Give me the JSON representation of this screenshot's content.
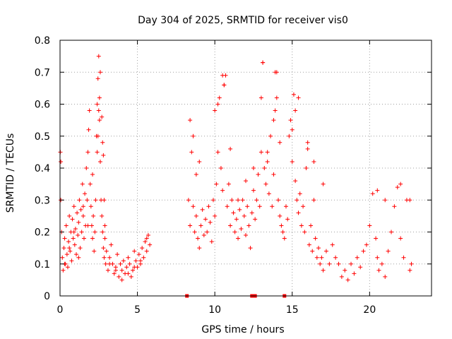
{
  "chart_data": {
    "type": "scatter",
    "title": "Day 304 of 2025, SRMTID for receiver vis0",
    "xlabel": "GPS time / hours",
    "ylabel": "SRMTID / TECUs",
    "xlim": [
      0,
      24
    ],
    "ylim": [
      0,
      0.8
    ],
    "xticks": [
      0,
      5,
      10,
      15,
      20
    ],
    "xtick_labels": [
      "0",
      "5",
      "10",
      "15",
      "20"
    ],
    "yticks": [
      0,
      0.1,
      0.2,
      0.3,
      0.4,
      0.5,
      0.6,
      0.7,
      0.8
    ],
    "ytick_labels": [
      "0",
      "0.1",
      "0.2",
      "0.3",
      "0.4",
      "0.5",
      "0.6",
      "0.7",
      "0.8"
    ],
    "grid": true,
    "marker": "plus",
    "series_color": "#ff0000",
    "series": [
      {
        "name": "SRMTID",
        "x": [
          0.02,
          0.05,
          0.1,
          0.15,
          0.2,
          0.25,
          0.3,
          0.35,
          0.4,
          0.45,
          0.5,
          0.55,
          0.6,
          0.65,
          0.7,
          0.75,
          0.8,
          0.85,
          0.9,
          0.95,
          1.0,
          1.05,
          1.1,
          1.15,
          1.2,
          1.25,
          1.3,
          1.35,
          1.4,
          1.45,
          1.5,
          1.55,
          1.6,
          1.65,
          1.7,
          1.75,
          1.8,
          1.85,
          1.9,
          1.95,
          2.0,
          2.05,
          2.1,
          2.15,
          2.2,
          2.25,
          2.3,
          2.35,
          2.4,
          2.45,
          2.5,
          2.55,
          2.6,
          2.65,
          2.7,
          2.75,
          2.8,
          2.85,
          2.9,
          2.95,
          3.0,
          3.1,
          3.2,
          3.3,
          3.4,
          3.5,
          3.6,
          3.7,
          3.8,
          3.9,
          4.0,
          4.1,
          4.2,
          4.3,
          4.4,
          4.5,
          4.6,
          4.7,
          4.8,
          4.9,
          5.0,
          5.1,
          5.2,
          5.3,
          5.4,
          5.5,
          5.6,
          5.7,
          5.8,
          0.05,
          0.3,
          0.6,
          0.9,
          1.2,
          1.5,
          1.8,
          2.1,
          2.4,
          2.45,
          2.5,
          2.55,
          2.6,
          2.7,
          2.75,
          2.8,
          2.85,
          2.9,
          3.2,
          3.6,
          4.0,
          4.4,
          4.8,
          5.2,
          5.6,
          8.3,
          8.4,
          8.5,
          8.6,
          8.7,
          8.8,
          8.9,
          9.0,
          9.1,
          9.2,
          9.3,
          9.4,
          9.5,
          9.6,
          9.7,
          9.8,
          9.9,
          10.0,
          10.1,
          10.2,
          10.3,
          10.4,
          10.5,
          10.6,
          10.7,
          10.8,
          10.9,
          11.0,
          11.1,
          11.2,
          11.3,
          11.4,
          11.5,
          11.6,
          11.7,
          11.8,
          11.9,
          12.0,
          12.1,
          12.2,
          12.3,
          12.4,
          12.5,
          12.6,
          12.7,
          12.8,
          12.9,
          13.0,
          13.1,
          13.2,
          13.3,
          13.4,
          13.5,
          13.6,
          13.7,
          13.8,
          13.9,
          14.0,
          14.1,
          14.2,
          14.3,
          14.4,
          14.5,
          14.6,
          14.7,
          14.8,
          14.9,
          15.0,
          15.1,
          15.2,
          15.3,
          15.4,
          15.5,
          15.6,
          15.7,
          15.8,
          15.9,
          16.0,
          16.1,
          16.2,
          16.3,
          16.4,
          16.5,
          16.6,
          16.7,
          16.8,
          16.9,
          17.0,
          17.2,
          17.4,
          17.6,
          17.8,
          18.0,
          18.2,
          18.4,
          18.6,
          18.8,
          19.0,
          19.2,
          19.4,
          19.6,
          19.8,
          20.0,
          20.2,
          20.4,
          20.5,
          20.6,
          20.8,
          21.0,
          21.2,
          21.4,
          21.6,
          21.8,
          22.0,
          22.2,
          22.4,
          22.6,
          22.7,
          8.4,
          8.6,
          8.8,
          9.0,
          10.0,
          10.2,
          10.5,
          10.6,
          11.0,
          11.5,
          12.0,
          12.5,
          13.0,
          13.1,
          13.4,
          13.8,
          13.9,
          14.0,
          14.2,
          15.0,
          15.2,
          15.4,
          16.0,
          16.4,
          17.0,
          20.5,
          21.0,
          22.0,
          22.6
        ],
        "y": [
          0.45,
          0.3,
          0.2,
          0.12,
          0.08,
          0.15,
          0.18,
          0.1,
          0.22,
          0.13,
          0.09,
          0.17,
          0.25,
          0.14,
          0.2,
          0.11,
          0.24,
          0.18,
          0.28,
          0.16,
          0.21,
          0.13,
          0.26,
          0.19,
          0.23,
          0.3,
          0.15,
          0.27,
          0.2,
          0.35,
          0.25,
          0.18,
          0.32,
          0.22,
          0.4,
          0.3,
          0.45,
          0.52,
          0.58,
          0.35,
          0.28,
          0.22,
          0.18,
          0.25,
          0.14,
          0.2,
          0.3,
          0.5,
          0.6,
          0.68,
          0.75,
          0.55,
          0.42,
          0.3,
          0.25,
          0.2,
          0.15,
          0.12,
          0.18,
          0.1,
          0.14,
          0.08,
          0.12,
          0.16,
          0.1,
          0.07,
          0.09,
          0.13,
          0.06,
          0.1,
          0.08,
          0.11,
          0.07,
          0.09,
          0.12,
          0.1,
          0.06,
          0.08,
          0.14,
          0.11,
          0.09,
          0.13,
          0.1,
          0.15,
          0.12,
          0.17,
          0.14,
          0.19,
          0.16,
          0.42,
          0.1,
          0.15,
          0.2,
          0.12,
          0.28,
          0.22,
          0.38,
          0.45,
          0.5,
          0.58,
          0.62,
          0.7,
          0.56,
          0.48,
          0.44,
          0.3,
          0.22,
          0.1,
          0.08,
          0.05,
          0.07,
          0.09,
          0.11,
          0.18,
          0.3,
          0.22,
          0.45,
          0.28,
          0.2,
          0.25,
          0.18,
          0.15,
          0.22,
          0.27,
          0.19,
          0.24,
          0.2,
          0.28,
          0.23,
          0.17,
          0.3,
          0.25,
          0.35,
          0.45,
          0.62,
          0.4,
          0.33,
          0.66,
          0.69,
          0.28,
          0.35,
          0.22,
          0.3,
          0.26,
          0.2,
          0.24,
          0.18,
          0.27,
          0.21,
          0.3,
          0.25,
          0.19,
          0.28,
          0.22,
          0.15,
          0.26,
          0.33,
          0.24,
          0.3,
          0.38,
          0.28,
          0.45,
          0.73,
          0.4,
          0.35,
          0.42,
          0.32,
          0.5,
          0.28,
          0.38,
          0.58,
          0.7,
          0.3,
          0.25,
          0.22,
          0.2,
          0.18,
          0.28,
          0.24,
          0.5,
          0.55,
          0.42,
          0.63,
          0.36,
          0.3,
          0.26,
          0.32,
          0.22,
          0.28,
          0.2,
          0.4,
          0.46,
          0.16,
          0.22,
          0.14,
          0.3,
          0.18,
          0.12,
          0.15,
          0.1,
          0.12,
          0.08,
          0.14,
          0.1,
          0.16,
          0.12,
          0.1,
          0.06,
          0.08,
          0.05,
          0.1,
          0.07,
          0.12,
          0.09,
          0.14,
          0.16,
          0.22,
          0.32,
          0.18,
          0.12,
          0.08,
          0.1,
          0.06,
          0.14,
          0.2,
          0.28,
          0.34,
          0.18,
          0.12,
          0.3,
          0.08,
          0.1,
          0.55,
          0.5,
          0.38,
          0.42,
          0.58,
          0.6,
          0.69,
          0.66,
          0.46,
          0.3,
          0.36,
          0.4,
          0.62,
          0.73,
          0.45,
          0.55,
          0.7,
          0.62,
          0.48,
          0.52,
          0.58,
          0.62,
          0.48,
          0.42,
          0.35,
          0.33,
          0.3,
          0.35,
          0.3
        ]
      }
    ],
    "gap_markers_x": [
      8.2,
      12.4,
      12.6,
      14.5
    ]
  }
}
